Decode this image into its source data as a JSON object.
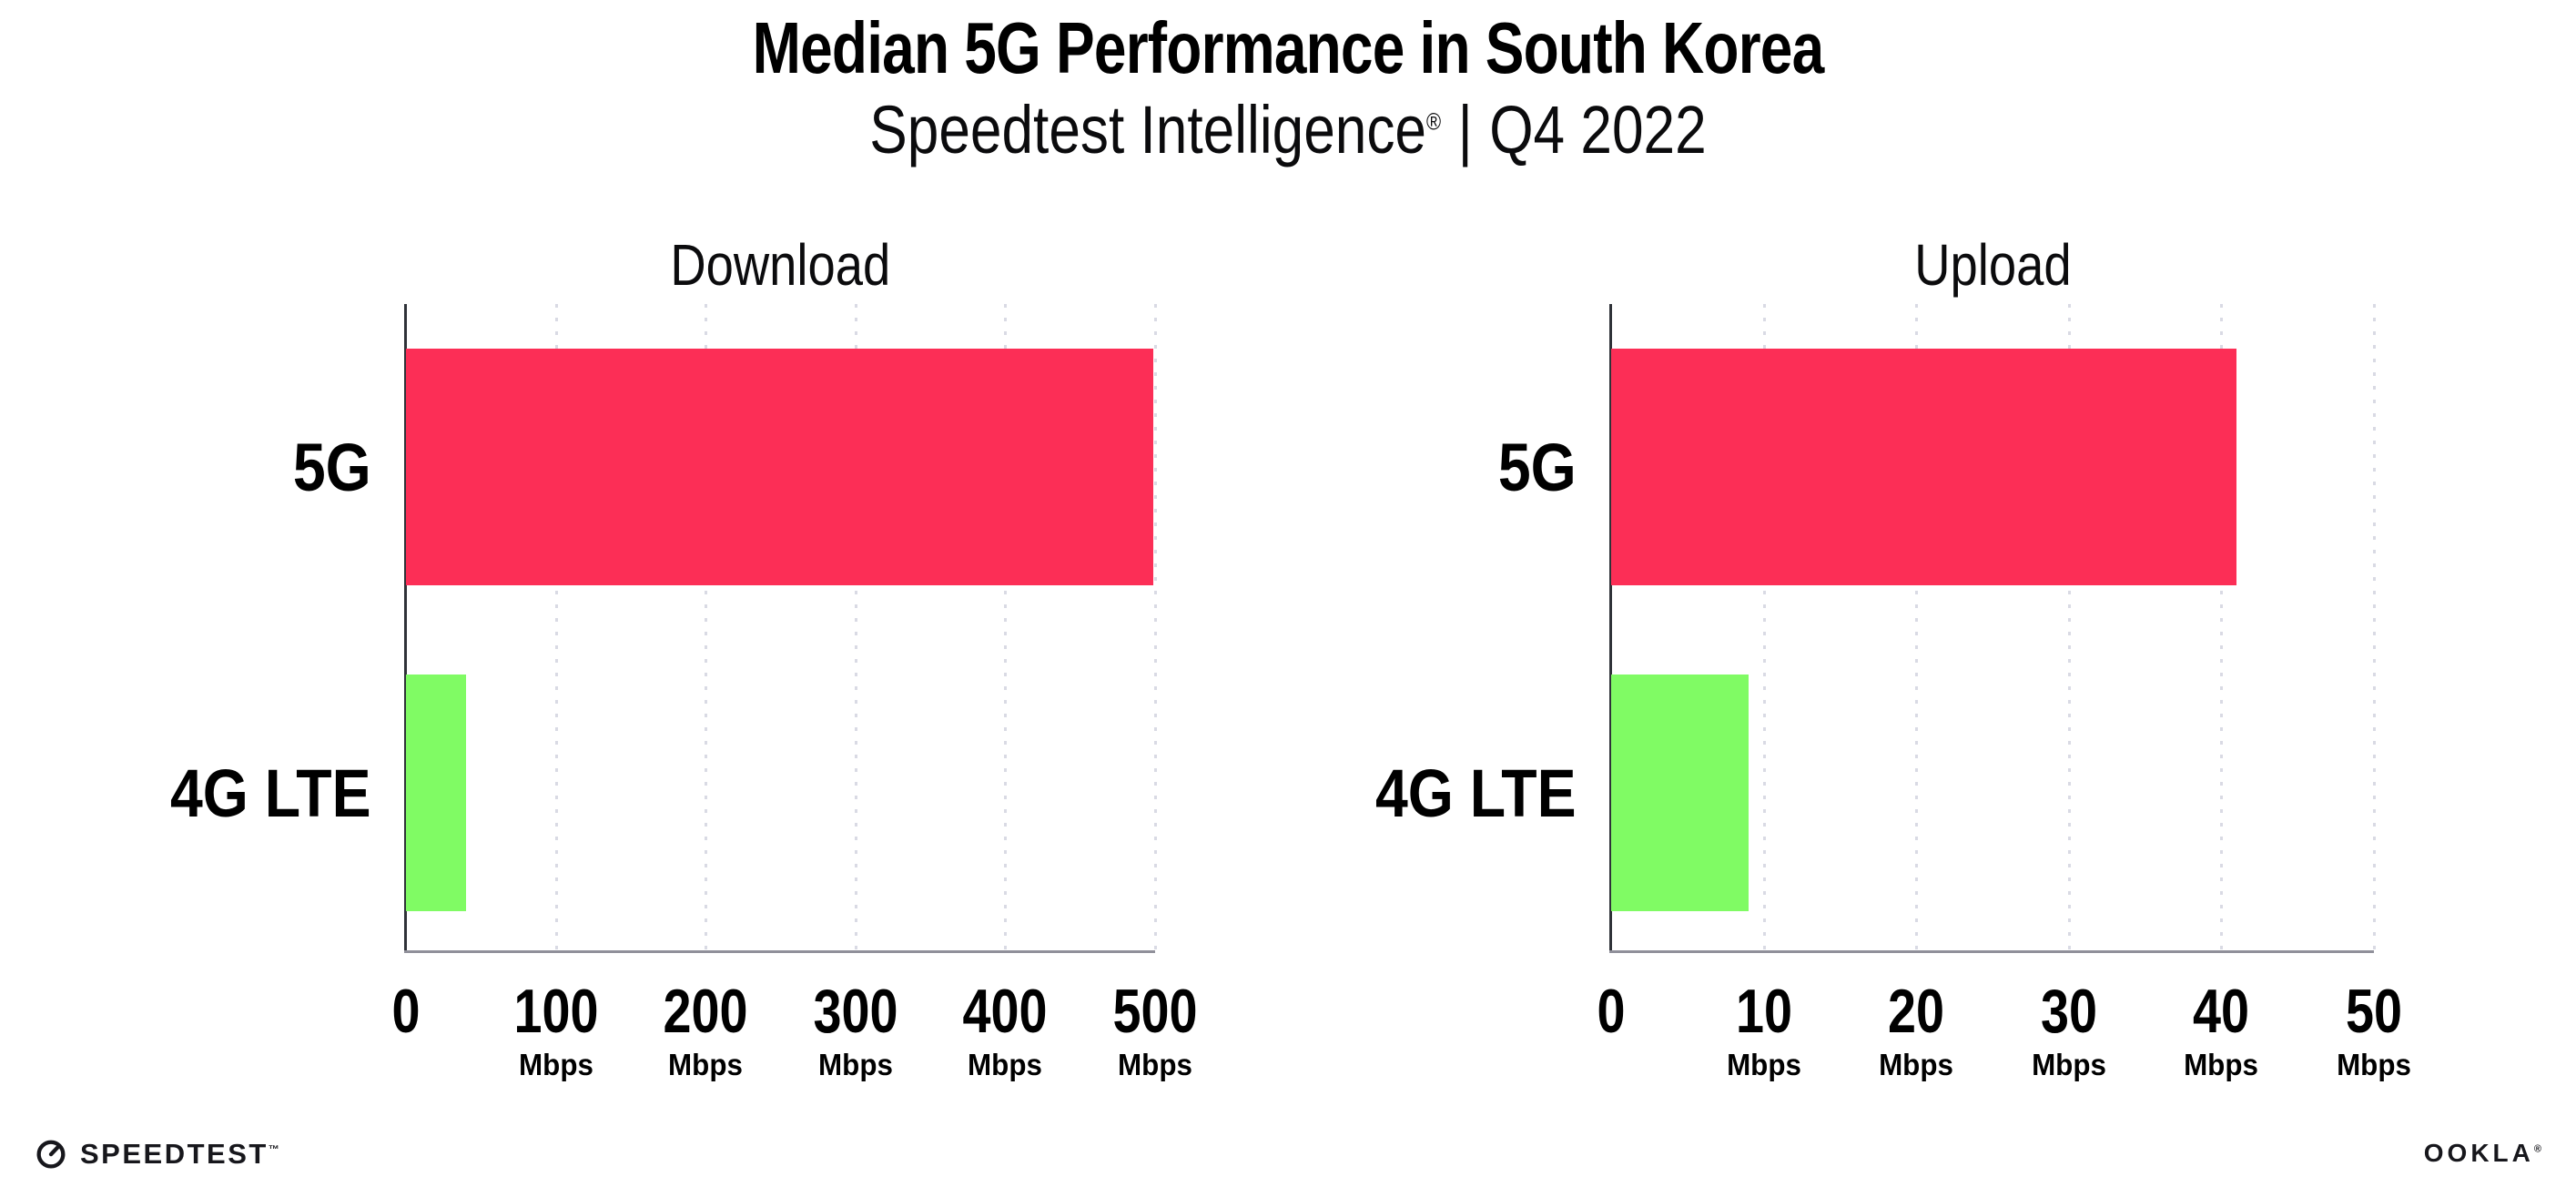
{
  "header": {
    "title": "Median 5G Performance in South Korea",
    "subtitle_brand": "Speedtest Intelligence",
    "subtitle_reg": "®",
    "subtitle_separator": "|",
    "subtitle_period": "Q4 2022"
  },
  "footer": {
    "speedtest_label": "SPEEDTEST",
    "speedtest_tm": "™",
    "ookla_label": "OOKLA",
    "ookla_reg": "®"
  },
  "colors": {
    "bar_5g": "#fc2e56",
    "bar_4g_lte": "#80fb64",
    "gridline": "#d9dae4",
    "axis_left": "#2f3238",
    "axis_bottom": "#90909a",
    "text": "#000000",
    "background": "#ffffff"
  },
  "chart_data": [
    {
      "type": "bar",
      "orientation": "horizontal",
      "title": "Download",
      "categories": [
        "5G",
        "4G LTE"
      ],
      "values": [
        499,
        40
      ],
      "unit": "Mbps",
      "xlim": [
        0,
        500
      ],
      "xticks": [
        0,
        100,
        200,
        300,
        400,
        500
      ],
      "unit_shown_on_zero_tick": false,
      "bar_colors": [
        "#fc2e56",
        "#80fb64"
      ],
      "grid": "vertical-dotted",
      "legend": "none"
    },
    {
      "type": "bar",
      "orientation": "horizontal",
      "title": "Upload",
      "categories": [
        "5G",
        "4G LTE"
      ],
      "values": [
        41,
        9
      ],
      "unit": "Mbps",
      "xlim": [
        0,
        50
      ],
      "xticks": [
        0,
        10,
        20,
        30,
        40,
        50
      ],
      "unit_shown_on_zero_tick": false,
      "bar_colors": [
        "#fc2e56",
        "#80fb64"
      ],
      "grid": "vertical-dotted",
      "legend": "none"
    }
  ]
}
